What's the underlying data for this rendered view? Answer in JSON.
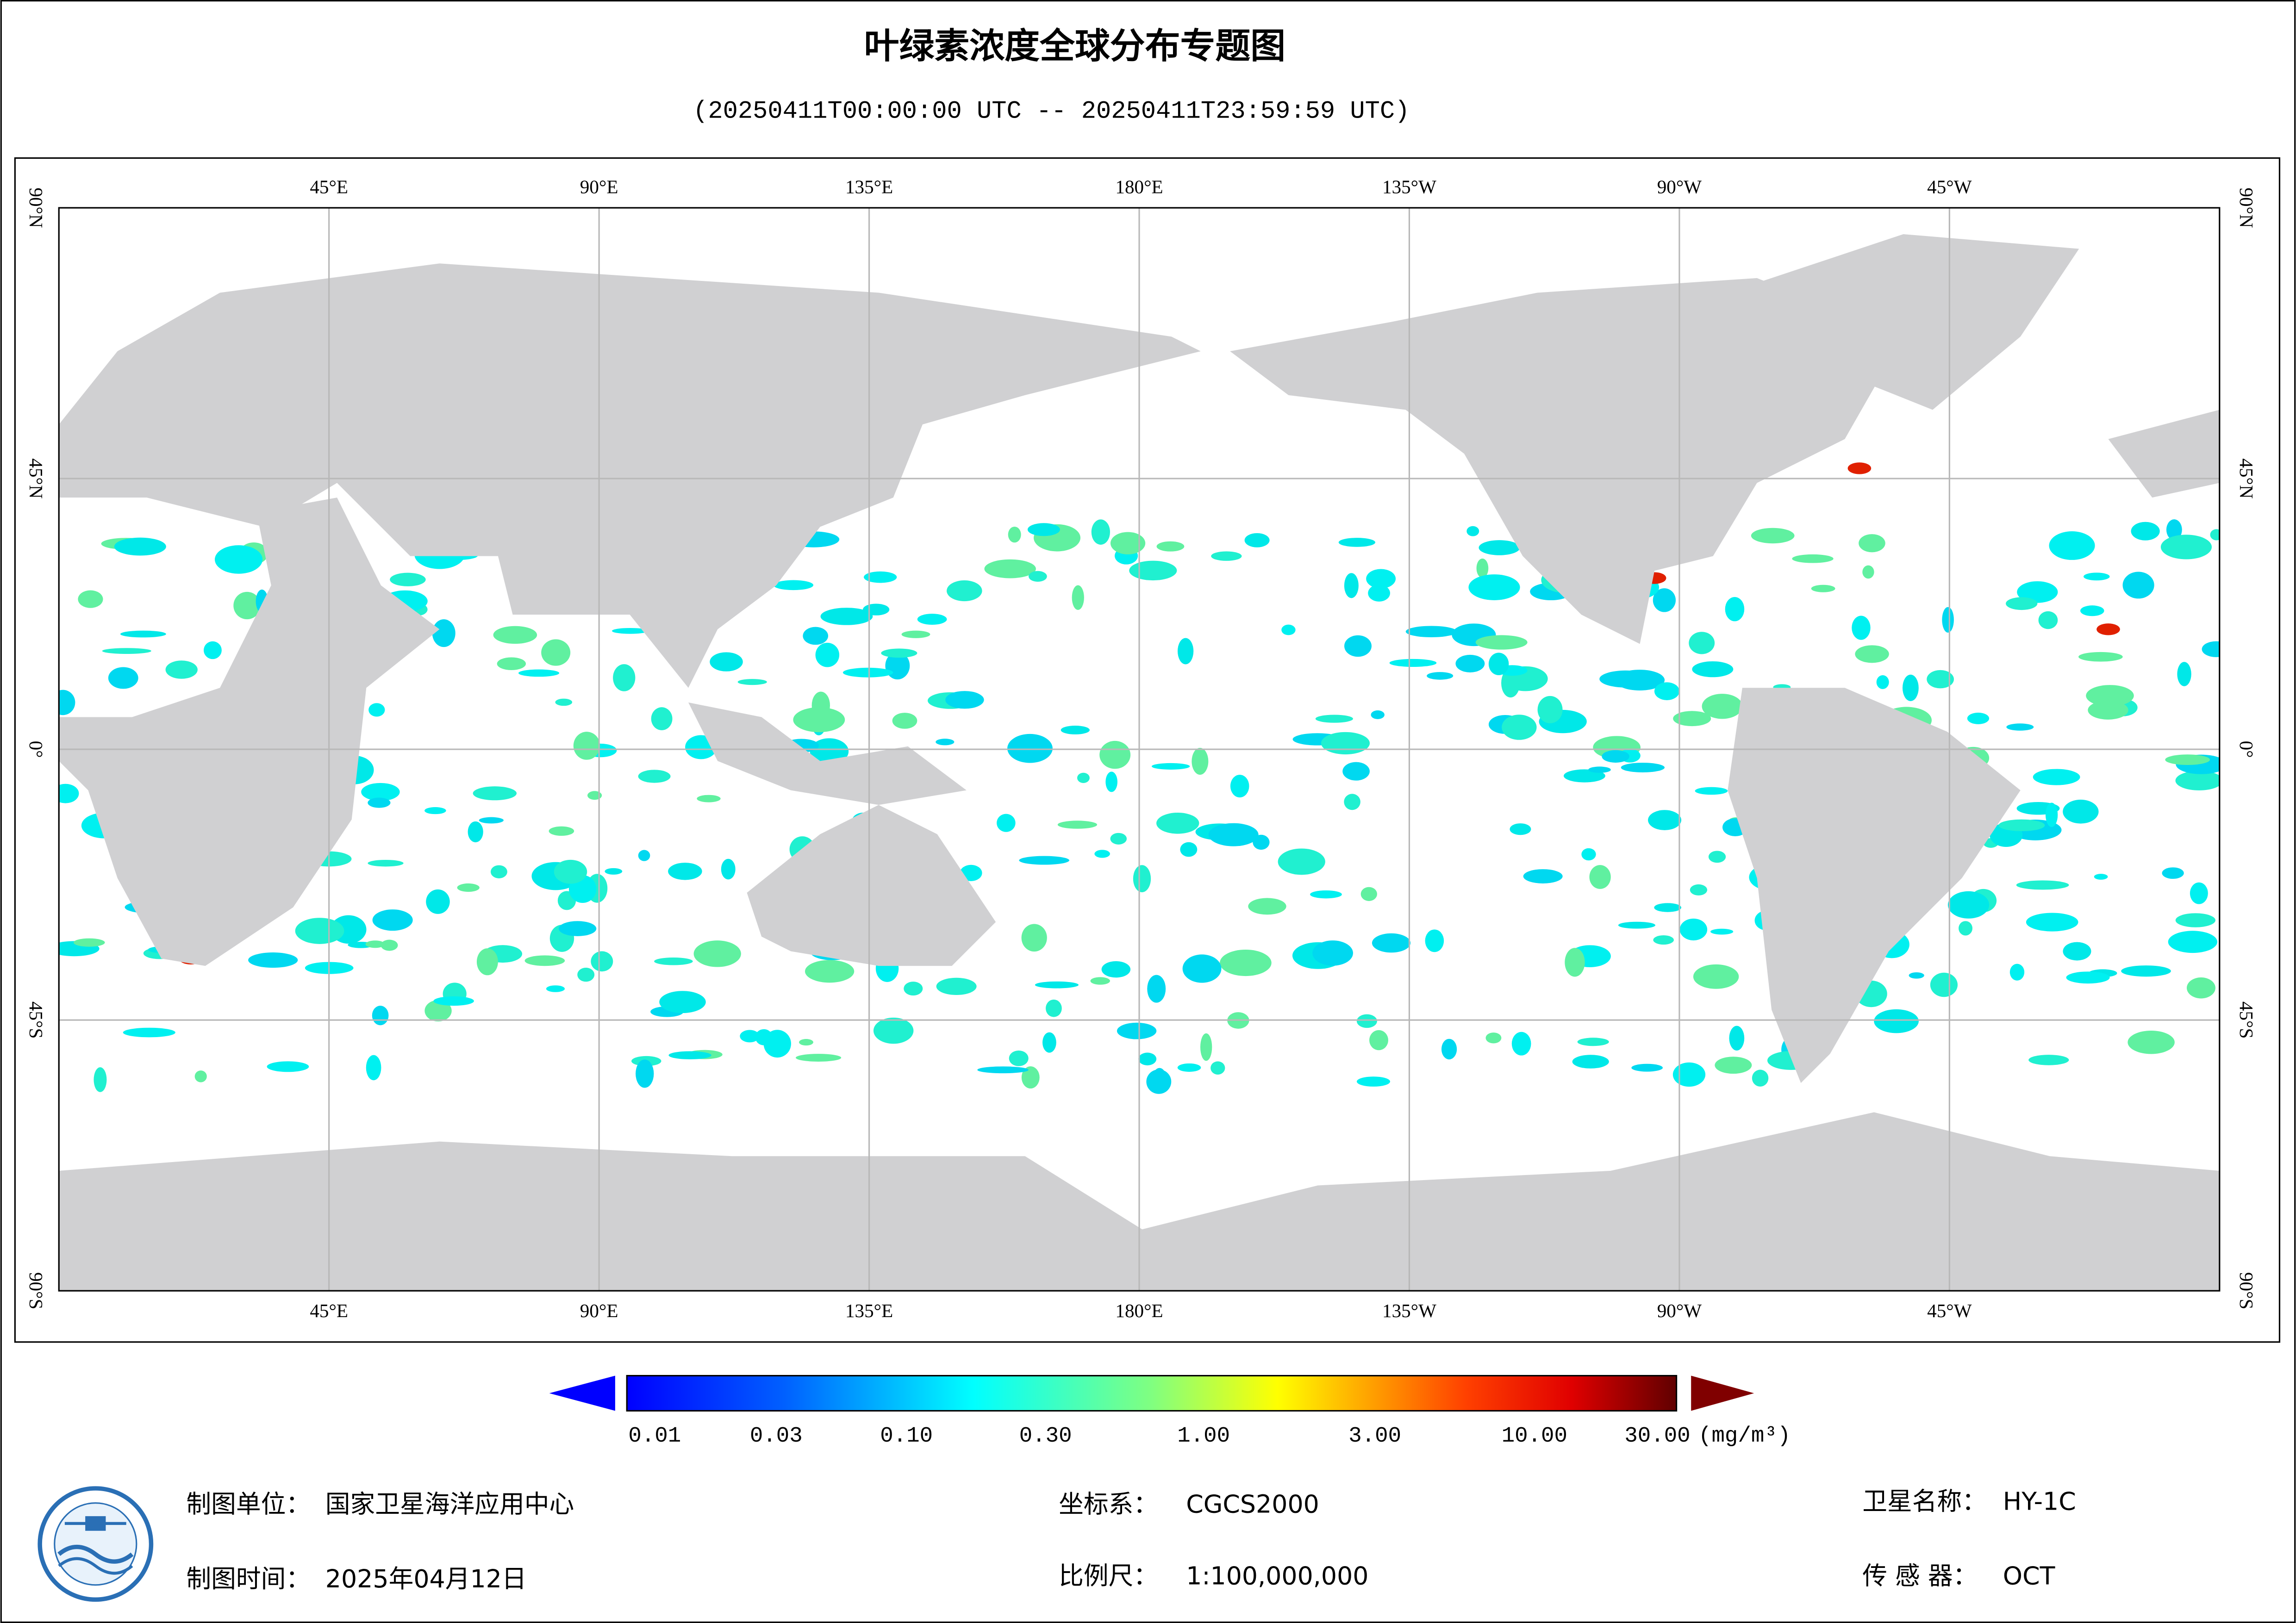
{
  "header": {
    "title": "叶绿素浓度全球分布专题图",
    "subtitle": "(20250411T00:00:00 UTC -- 20250411T23:59:59 UTC)"
  },
  "map": {
    "lon_labels": [
      "45°E",
      "90°E",
      "135°E",
      "180°E",
      "135°W",
      "90°W",
      "45°W"
    ],
    "lat_labels": [
      "90°N",
      "45°N",
      "0°",
      "45°S",
      "90°S"
    ]
  },
  "legend": {
    "ticks": [
      "0.01",
      "0.03",
      "0.10",
      "0.30",
      "1.00",
      "3.00",
      "10.00",
      "30.00"
    ],
    "unit": "(mg/m³)"
  },
  "footer": {
    "producer": {
      "label": "制图单位：",
      "value": "国家卫星海洋应用中心"
    },
    "date": {
      "label": "制图时间：",
      "value": "2025年04月12日"
    },
    "crs": {
      "label": "坐标系：",
      "value": "CGCS2000"
    },
    "scale": {
      "label": "比例尺：",
      "value": "1:100,000,000"
    },
    "satellite": {
      "label": "卫星名称：",
      "value": "HY-1C"
    },
    "sensor": {
      "label": "传 感 器：",
      "value": "OCT"
    }
  }
}
